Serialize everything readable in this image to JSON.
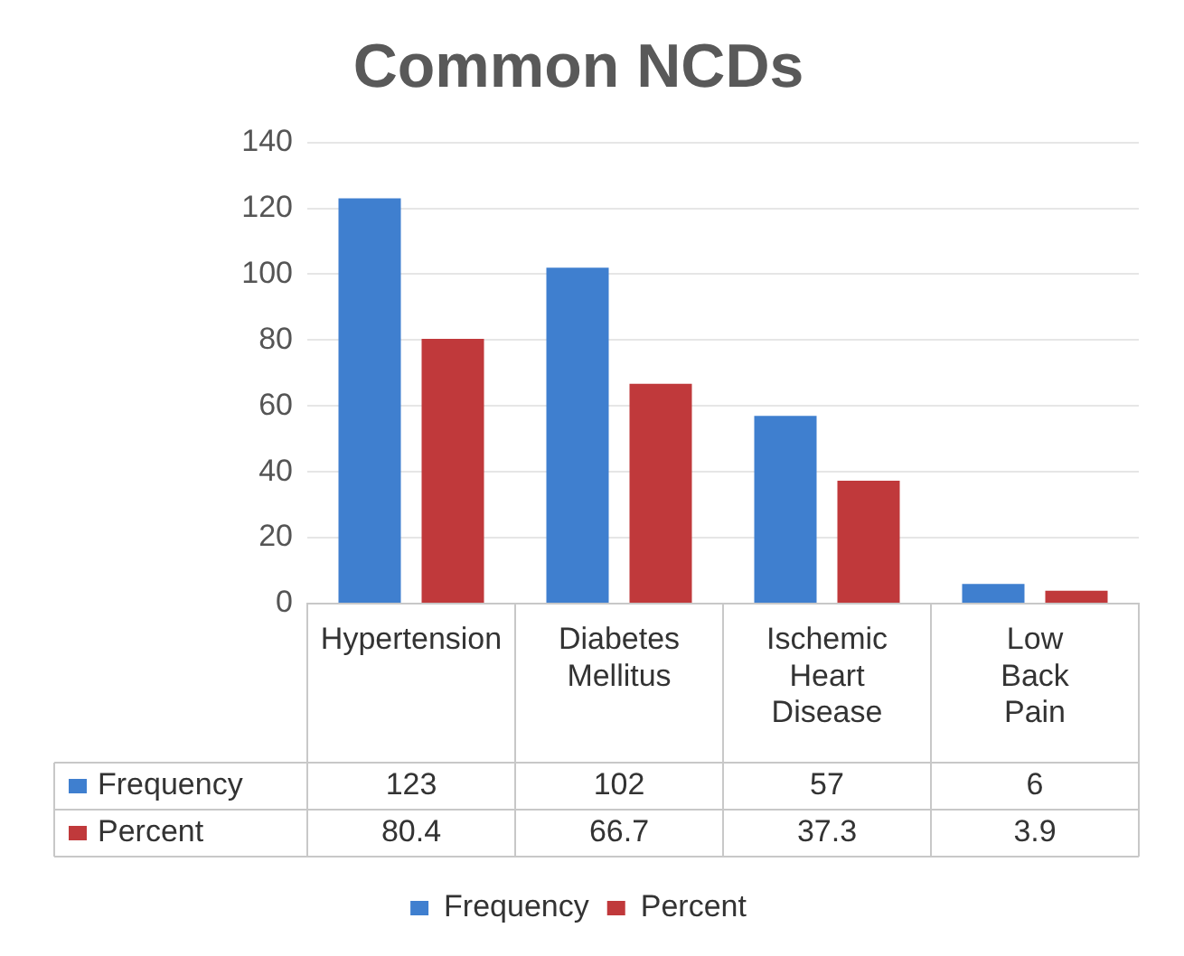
{
  "chart_data": {
    "type": "bar",
    "title": "Common NCDs",
    "categories": [
      "Hypertension",
      "Diabetes Mellitus",
      "Ischemic Heart Disease",
      "Low Back Pain"
    ],
    "series": [
      {
        "name": "Frequency",
        "color": "#3f7fcf",
        "values": [
          123,
          102,
          57,
          6
        ]
      },
      {
        "name": "Percent",
        "color": "#c0393b",
        "values": [
          80.4,
          66.7,
          37.3,
          3.9
        ]
      }
    ],
    "ylim": [
      0,
      140
    ],
    "yticks": [
      0,
      20,
      40,
      60,
      80,
      100,
      120,
      140
    ],
    "grid": "y",
    "legend": "bottom",
    "data_labels": true
  }
}
